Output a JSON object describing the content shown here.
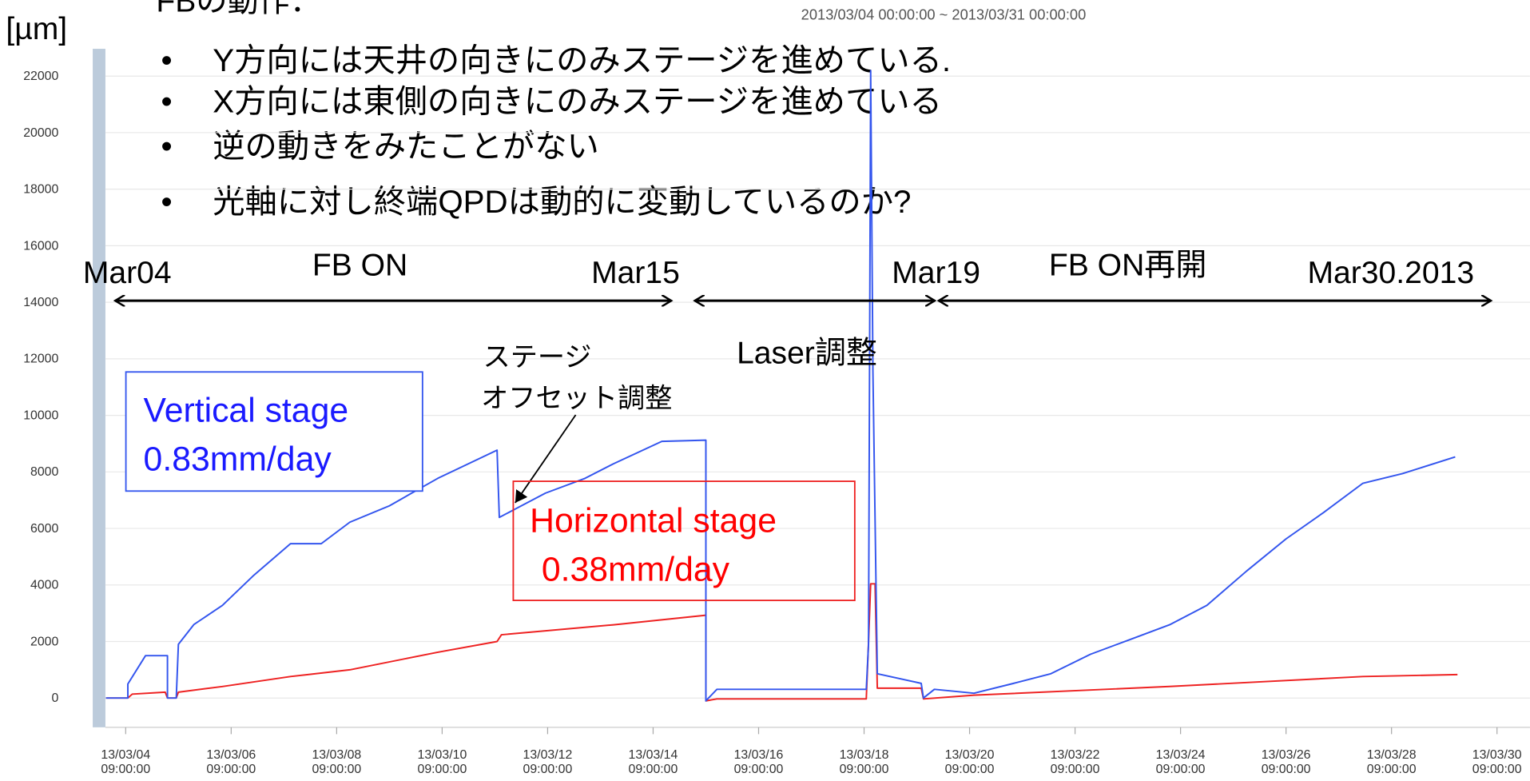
{
  "chart_data": {
    "type": "line",
    "title": "2013/03/04 00:00:00 ~ 2013/03/31 00:00:00",
    "y_unit": "[µm]",
    "slide": {
      "heading": "FBの動作：",
      "bullets": [
        "Y方向には天井の向きにのみステージを進めている.",
        "X方向には東側の向きにのみステージを進めている",
        "逆の動きをみたことがない",
        "光軸に対し終端QPDは動的に変動しているのか?"
      ]
    },
    "annotations": [
      "Mar04",
      "FB ON",
      "Mar15",
      "Mar19",
      "FB ON再開",
      "Mar30.2013",
      "Laser調整",
      "ステージ",
      "オフセット調整"
    ],
    "series": [
      {
        "name": "Vertical stage",
        "rate": "0.83mm/day",
        "color": "#3355ee",
        "x": [
          "2013/03/04 00:00",
          "2013/03/04 10:00",
          "2013/03/04 10:00",
          "2013/03/04 18:00",
          "2013/03/05 04:00",
          "2013/03/05 04:00",
          "2013/03/05 08:00",
          "2013/03/05 09:00",
          "2013/03/05 16:00",
          "2013/03/06 05:00",
          "2013/03/06 19:00",
          "2013/03/07 12:00",
          "2013/03/08 02:00",
          "2013/03/08 15:00",
          "2013/03/09 09:00",
          "2013/03/10 07:00",
          "2013/03/11 10:00",
          "2013/03/11 11:00",
          "2013/03/12 08:00",
          "2013/03/13 02:00",
          "2013/03/13 15:00",
          "2013/03/14 13:00",
          "2013/03/15 09:00",
          "2013/03/15 09:00",
          "2013/03/15 14:00",
          "2013/03/18 10:00",
          "2013/03/18 11:00",
          "2013/03/18 12:00",
          "2013/03/18 13:00",
          "2013/03/18 15:00",
          "2013/03/19 11:00",
          "2013/03/19 12:00",
          "2013/03/19 17:00",
          "2013/03/20 11:00",
          "2013/03/21 05:00",
          "2013/03/21 22:00",
          "2013/03/22 16:00",
          "2013/03/23 10:00",
          "2013/03/24 04:00",
          "2013/03/24 21:00",
          "2013/03/25 15:00",
          "2013/03/26 09:00",
          "2013/03/27 02:00",
          "2013/03/27 20:00",
          "2013/03/28 14:00",
          "2013/03/29 14:00"
        ],
        "values": [
          0,
          0,
          500,
          1500,
          1500,
          0,
          0,
          1900,
          2600,
          3280,
          4320,
          5460,
          5460,
          6220,
          6800,
          7770,
          8770,
          6390,
          7250,
          7770,
          8290,
          9080,
          9120,
          -100,
          310,
          310,
          1900,
          22200,
          11570,
          860,
          520,
          0,
          310,
          170,
          520,
          860,
          1550,
          2070,
          2590,
          3280,
          4490,
          5630,
          6560,
          7600,
          7940,
          8530
        ]
      },
      {
        "name": "Horizontal stage",
        "rate": "0.38mm/day",
        "color": "#ee2222",
        "x": [
          "2013/03/04 00:00",
          "2013/03/04 10:00",
          "2013/03/04 12:00",
          "2013/03/05 03:00",
          "2013/03/05 04:00",
          "2013/03/05 08:00",
          "2013/03/05 09:00",
          "2013/03/06 05:00",
          "2013/03/07 12:00",
          "2013/03/08 15:00",
          "2013/03/10 07:00",
          "2013/03/11 10:00",
          "2013/03/11 12:00",
          "2013/03/13 15:00",
          "2013/03/15 09:00",
          "2013/03/15 09:00",
          "2013/03/15 14:00",
          "2013/03/18 10:00",
          "2013/03/18 11:00",
          "2013/03/18 12:00",
          "2013/03/18 14:00",
          "2013/03/18 15:00",
          "2013/03/19 11:00",
          "2013/03/19 12:00",
          "2013/03/20 11:00",
          "2013/03/24 04:00",
          "2013/03/27 20:00",
          "2013/03/29 15:00"
        ],
        "values": [
          0,
          0,
          140,
          210,
          0,
          0,
          210,
          410,
          760,
          1000,
          1620,
          2000,
          2240,
          2590,
          2930,
          -100,
          -30,
          -30,
          1970,
          4040,
          4040,
          350,
          350,
          -30,
          100,
          410,
          760,
          830
        ]
      }
    ],
    "xlim": [
      "2013/03/03 18:00",
      "2013/03/31 00:00"
    ],
    "xticks": [
      {
        "value": "2013/03/04 09:00",
        "label": "13/03/04\n09:00:00"
      },
      {
        "value": "2013/03/06 09:00",
        "label": "13/03/06\n09:00:00"
      },
      {
        "value": "2013/03/08 09:00",
        "label": "13/03/08\n09:00:00"
      },
      {
        "value": "2013/03/10 09:00",
        "label": "13/03/10\n09:00:00"
      },
      {
        "value": "2013/03/12 09:00",
        "label": "13/03/12\n09:00:00"
      },
      {
        "value": "2013/03/14 09:00",
        "label": "13/03/14\n09:00:00"
      },
      {
        "value": "2013/03/16 09:00",
        "label": "13/03/16\n09:00:00"
      },
      {
        "value": "2013/03/18 09:00",
        "label": "13/03/18\n09:00:00"
      },
      {
        "value": "2013/03/20 09:00",
        "label": "13/03/20\n09:00:00"
      },
      {
        "value": "2013/03/22 09:00",
        "label": "13/03/22\n09:00:00"
      },
      {
        "value": "2013/03/24 09:00",
        "label": "13/03/24\n09:00:00"
      },
      {
        "value": "2013/03/26 09:00",
        "label": "13/03/26\n09:00:00"
      },
      {
        "value": "2013/03/28 09:00",
        "label": "13/03/28\n09:00:00"
      },
      {
        "value": "2013/03/30 09:00",
        "label": "13/03/30\n09:00:00"
      }
    ],
    "ylim": [
      -1000,
      23000
    ],
    "yticks": [
      0,
      2000,
      4000,
      6000,
      8000,
      10000,
      12000,
      14000,
      16000,
      18000,
      20000,
      22000
    ],
    "grid": true
  }
}
